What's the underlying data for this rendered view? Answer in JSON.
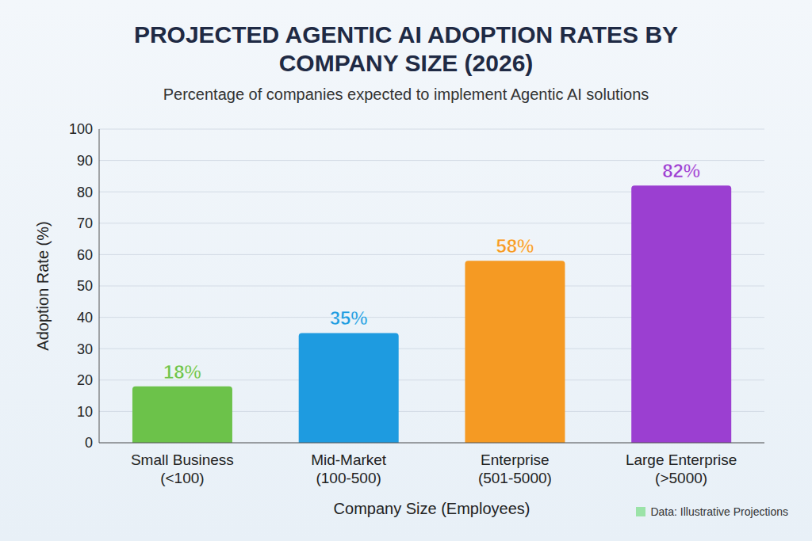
{
  "chart_data": {
    "type": "bar",
    "title": "PROJECTED AGENTIC AI ADOPTION RATES BY COMPANY SIZE (2026)",
    "subtitle": "Percentage of companies expected to implement Agentic AI solutions",
    "x_label": "Company Size (Employees)",
    "y_label": "Adoption Rate (%)",
    "annotation": "Data: Illustrative Projections",
    "categories": [
      "Small Business (<100)",
      "Mid-Market (100-500)",
      "Enterprise (501-5000)",
      "Large Enterprise (>5000)"
    ],
    "values": [
      18,
      35,
      58,
      82
    ],
    "value_labels": [
      "18%",
      "35%",
      "58%",
      "82%"
    ],
    "colors": [
      "#6cc24a",
      "#1e9be0",
      "#f59a23",
      "#9b3fd1"
    ],
    "ylim": [
      0,
      100
    ],
    "yticks": [
      0,
      10,
      20,
      30,
      40,
      50,
      60,
      70,
      80,
      90,
      100
    ],
    "grid": true,
    "data_labels": true
  }
}
